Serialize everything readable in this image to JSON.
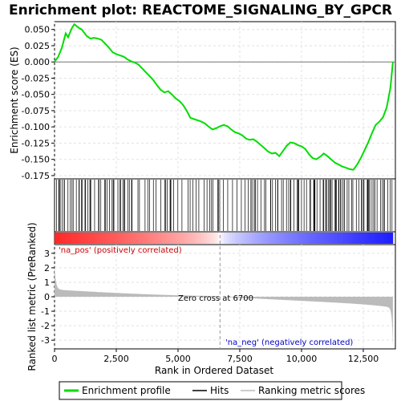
{
  "chart_data": {
    "type": "line",
    "title": "Enrichment plot: REACTOME_SIGNALING_BY_GPCR",
    "xlabel": "Rank in Ordered Dataset",
    "ylabel_top": "Enrichment score (ES)",
    "ylabel_bottom": "Ranked list metric (PreRanked)",
    "xlim": [
      0,
      13800
    ],
    "x_ticks": [
      0,
      2500,
      5000,
      7500,
      10000,
      12500
    ],
    "x_tick_labels": [
      "0",
      "2,500",
      "5,000",
      "7,500",
      "10,000",
      "12,500"
    ],
    "es_ylim": [
      -0.18,
      0.062
    ],
    "es_ticks": [
      0.05,
      0.025,
      0.0,
      -0.025,
      -0.05,
      -0.075,
      -0.1,
      -0.125,
      -0.15,
      -0.175
    ],
    "es_tick_labels": [
      "0.050",
      "0.025",
      "0.000",
      "-0.025",
      "-0.050",
      "-0.075",
      "-0.100",
      "-0.125",
      "-0.150",
      "-0.175"
    ],
    "metric_ylim": [
      -3.6,
      3.6
    ],
    "metric_ticks": [
      3,
      2,
      1,
      0,
      -1,
      -2,
      -3
    ],
    "metric_tick_labels": [
      "3",
      "2",
      "1",
      "0",
      "-1",
      "-2",
      "-3"
    ],
    "zero_cross_rank": 6700,
    "zero_cross_label": "Zero cross at 6700",
    "pos_label": "'na_pos' (positively correlated)",
    "neg_label": "'na_neg' (negatively correlated)",
    "series": [
      {
        "name": "Enrichment profile",
        "color": "#00dd00",
        "x": [
          0,
          150,
          300,
          450,
          550,
          700,
          800,
          900,
          1000,
          1100,
          1200,
          1300,
          1450,
          1600,
          1750,
          1900,
          2050,
          2200,
          2350,
          2500,
          2650,
          2800,
          2950,
          3100,
          3250,
          3400,
          3550,
          3700,
          3850,
          4000,
          4150,
          4300,
          4450,
          4600,
          4750,
          4900,
          5050,
          5200,
          5350,
          5500,
          5650,
          5800,
          5950,
          6100,
          6250,
          6400,
          6550,
          6700,
          6850,
          7000,
          7150,
          7300,
          7450,
          7600,
          7750,
          7900,
          8050,
          8200,
          8350,
          8500,
          8650,
          8800,
          8950,
          9100,
          9250,
          9400,
          9550,
          9700,
          9850,
          10000,
          10150,
          10300,
          10450,
          10600,
          10750,
          10900,
          11050,
          11200,
          11350,
          11500,
          11650,
          11800,
          11950,
          12100,
          12250,
          12400,
          12550,
          12700,
          12850,
          13000,
          13150,
          13300,
          13450,
          13600,
          13700
        ],
        "y": [
          0.0,
          0.008,
          0.022,
          0.044,
          0.038,
          0.052,
          0.058,
          0.055,
          0.052,
          0.05,
          0.045,
          0.04,
          0.036,
          0.037,
          0.036,
          0.034,
          0.028,
          0.022,
          0.015,
          0.012,
          0.01,
          0.008,
          0.004,
          0.001,
          -0.001,
          -0.004,
          -0.01,
          -0.016,
          -0.022,
          -0.028,
          -0.036,
          -0.043,
          -0.047,
          -0.045,
          -0.05,
          -0.056,
          -0.06,
          -0.066,
          -0.075,
          -0.086,
          -0.088,
          -0.09,
          -0.092,
          -0.095,
          -0.1,
          -0.104,
          -0.102,
          -0.099,
          -0.097,
          -0.099,
          -0.104,
          -0.108,
          -0.11,
          -0.113,
          -0.118,
          -0.12,
          -0.119,
          -0.123,
          -0.128,
          -0.133,
          -0.138,
          -0.141,
          -0.14,
          -0.145,
          -0.137,
          -0.129,
          -0.124,
          -0.125,
          -0.128,
          -0.13,
          -0.134,
          -0.142,
          -0.148,
          -0.15,
          -0.146,
          -0.141,
          -0.145,
          -0.15,
          -0.155,
          -0.158,
          -0.161,
          -0.163,
          -0.165,
          -0.166,
          -0.158,
          -0.148,
          -0.136,
          -0.124,
          -0.11,
          -0.097,
          -0.092,
          -0.085,
          -0.07,
          -0.04,
          0.0
        ]
      }
    ],
    "legend": [
      {
        "label": "Enrichment profile",
        "color": "#00dd00"
      },
      {
        "label": "Hits",
        "color": "#000000"
      },
      {
        "label": "Ranking metric scores",
        "color": "#bbbbbb"
      }
    ],
    "grid": true
  }
}
